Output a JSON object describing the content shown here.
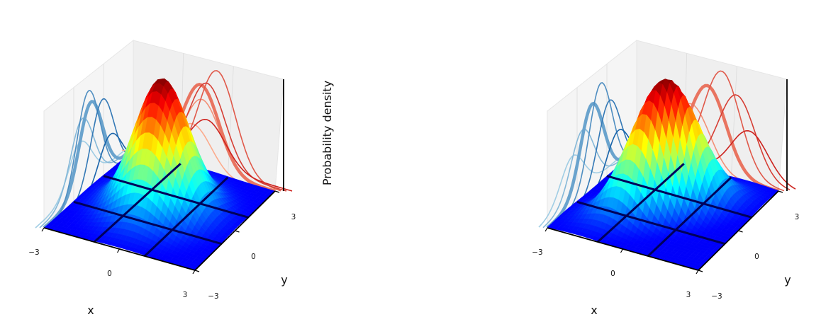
{
  "chart_data": [
    {
      "type": "surface",
      "title": "",
      "xlabel": "x",
      "ylabel": "y",
      "zlabel": "Probability density",
      "xlim": [
        -3,
        3
      ],
      "ylim": [
        -3,
        3
      ],
      "x_ticks": [
        "−3",
        "0",
        "3"
      ],
      "y_ticks": [
        "−3",
        "0",
        "3"
      ],
      "surface": {
        "mu_x": 0,
        "mu_y": 0,
        "sigma_x": 1,
        "sigma_y": 1,
        "rho": 0.0,
        "colormap": "jet"
      },
      "slice_positions": [
        -1,
        1
      ],
      "x_marginal_curves": {
        "colormap": "Blues",
        "bold_index": 2,
        "scales": [
          0.55,
          0.85,
          1.0,
          1.2,
          1.0,
          0.55
        ],
        "shifts": [
          0,
          -0.05,
          0.05,
          -0.1,
          0.12,
          0.2
        ]
      },
      "y_marginal_curves": {
        "colormap": "Reds",
        "bold_index": 2,
        "scales": [
          0.55,
          0.85,
          1.0,
          1.2,
          1.0,
          0.55
        ],
        "shifts": [
          0,
          0.05,
          -0.05,
          0.1,
          -0.12,
          -0.2
        ]
      },
      "grid": true,
      "accent_colors": {
        "surface_base": "#0b0b8f",
        "blue_curves": "#4a90c8",
        "red_curves": "#ef4a3a"
      }
    },
    {
      "type": "surface",
      "title": "",
      "xlabel": "x",
      "ylabel": "y",
      "zlabel": "",
      "xlim": [
        -3,
        3
      ],
      "ylim": [
        -3,
        3
      ],
      "x_ticks": [
        "−3",
        "0",
        "3"
      ],
      "y_ticks": [
        "−3",
        "0",
        "3"
      ],
      "surface": {
        "mu_x": 0,
        "mu_y": 0,
        "sigma_x": 1,
        "sigma_y": 1,
        "rho": 0.6,
        "colormap": "jet"
      },
      "slice_positions": [
        -1,
        1
      ],
      "x_marginal_curves": {
        "colormap": "Blues",
        "bold_index": 2,
        "scales": [
          0.5,
          0.75,
          1.0,
          1.2,
          0.95,
          0.55
        ],
        "shifts": [
          -0.25,
          -0.12,
          0.0,
          0.1,
          0.2,
          0.3
        ]
      },
      "y_marginal_curves": {
        "colormap": "Reds",
        "bold_index": 2,
        "scales": [
          0.5,
          0.75,
          1.0,
          1.2,
          0.95,
          0.55
        ],
        "shifts": [
          -0.3,
          -0.15,
          0.0,
          0.12,
          0.25,
          0.35
        ]
      },
      "grid": true,
      "accent_colors": {
        "surface_base": "#0b0b8f",
        "blue_curves": "#4a90c8",
        "red_curves": "#ef4a3a"
      }
    }
  ]
}
